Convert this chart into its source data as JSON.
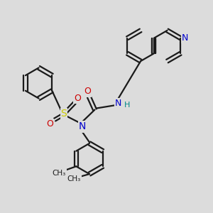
{
  "bg_color": "#dcdcdc",
  "bond_color": "#1a1a1a",
  "bond_width": 1.6,
  "fig_size": [
    3.0,
    3.0
  ],
  "dpi": 100,
  "atom_colors": {
    "N": "#0000cc",
    "O": "#cc0000",
    "S": "#cccc00",
    "H": "#008888",
    "C": "#1a1a1a"
  },
  "scale": 10.0
}
